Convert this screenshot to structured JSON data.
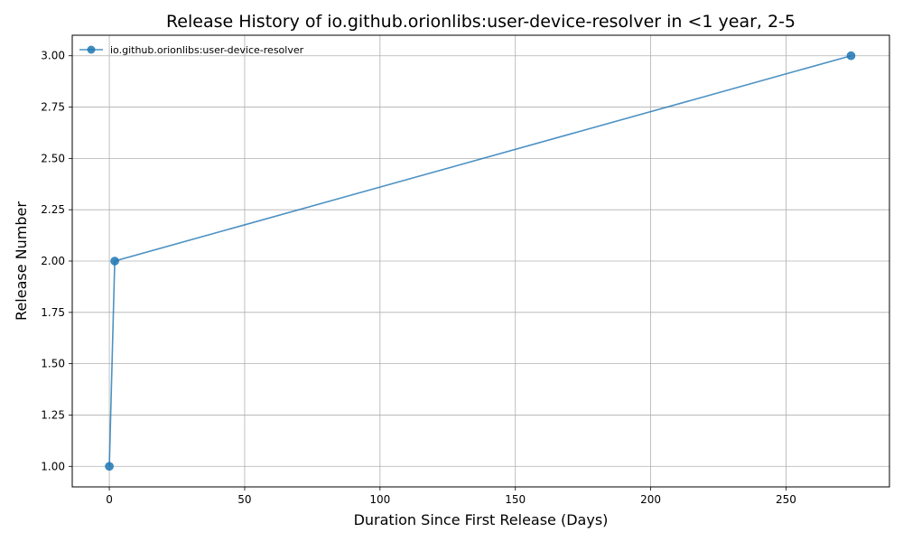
{
  "chart_data": {
    "type": "line",
    "title": "Release History of io.github.orionlibs:user-device-resolver in <1 year, 2-5",
    "xlabel": "Duration Since First Release (Days)",
    "ylabel": "Release Number",
    "xlim": [
      -13.7,
      288.2
    ],
    "ylim": [
      0.9,
      3.1
    ],
    "xticks": [
      0,
      50,
      100,
      150,
      200,
      250
    ],
    "yticks": [
      1.0,
      1.25,
      1.5,
      1.75,
      2.0,
      2.25,
      2.5,
      2.75,
      3.0
    ],
    "xtick_labels": [
      "0",
      "50",
      "100",
      "150",
      "200",
      "250"
    ],
    "ytick_labels": [
      "1.00",
      "1.25",
      "1.50",
      "1.75",
      "2.00",
      "2.25",
      "2.50",
      "2.75",
      "3.00"
    ],
    "grid": true,
    "legend_position": "top-left",
    "series": [
      {
        "name": "io.github.orionlibs:user-device-resolver",
        "color": "#1f77b4",
        "x": [
          0,
          2,
          274
        ],
        "y": [
          1,
          2,
          3
        ]
      }
    ]
  }
}
